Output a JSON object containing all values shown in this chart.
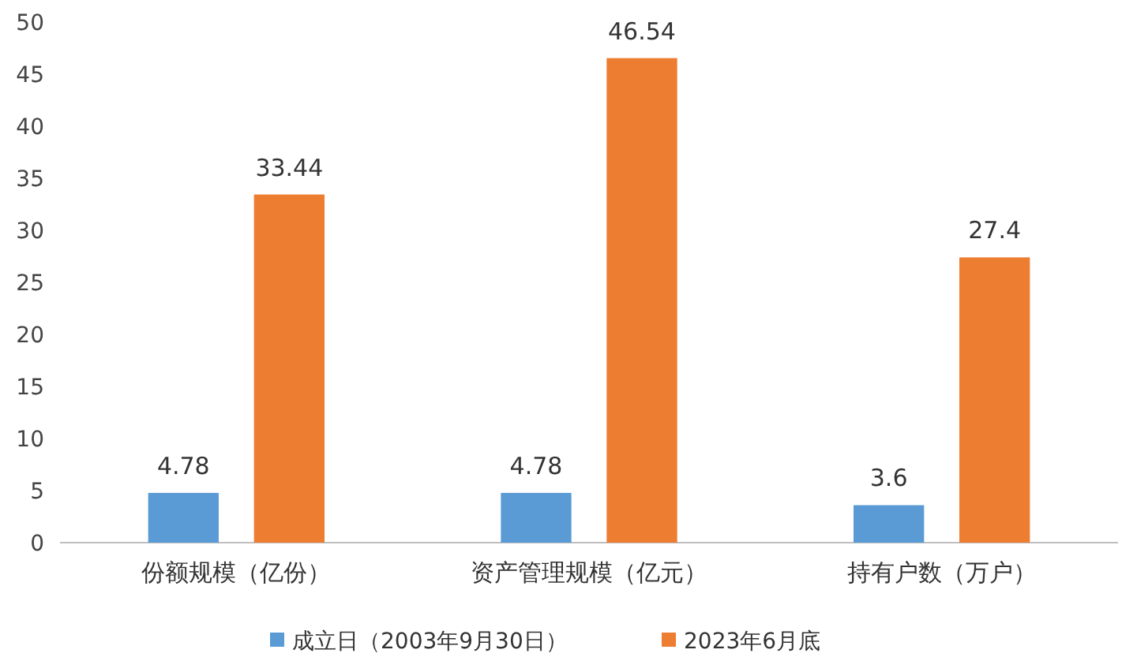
{
  "chart_data": {
    "type": "bar",
    "categories": [
      "份额规模（亿份）",
      "资产管理规模（亿元）",
      "持有户数（万户）"
    ],
    "series": [
      {
        "name": "成立日（2003年9月30日）",
        "color": "#5b9bd5",
        "values": [
          4.78,
          4.78,
          3.6
        ]
      },
      {
        "name": "2023年6月底",
        "color": "#ed7d31",
        "values": [
          33.44,
          46.54,
          27.4
        ]
      }
    ],
    "value_labels": [
      [
        "4.78",
        "4.78",
        "3.6"
      ],
      [
        "33.44",
        "46.54",
        "27.4"
      ]
    ],
    "ylim": [
      0,
      50
    ],
    "yticks": [
      0,
      5,
      10,
      15,
      20,
      25,
      30,
      35,
      40,
      45,
      50
    ],
    "grid": false,
    "legend": "bottom"
  }
}
